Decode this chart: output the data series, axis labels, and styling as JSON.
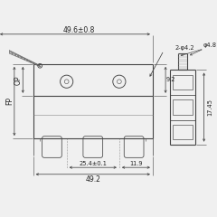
{
  "bg_color": "#f0f0f0",
  "line_color": "#444444",
  "dim_color": "#444444",
  "text_color": "#222222",
  "dims": {
    "spring_length": "49.6±0.8",
    "hole_spacing": "25.4±0.1",
    "side_dim": "11.9",
    "body_width": "49.2",
    "side_height": "17.45",
    "pin_dia": "φ4.8",
    "hole_dia": "2-φ4.2",
    "vert_fp": "FP",
    "vert_op": "OP",
    "vert_92": "9.2"
  }
}
